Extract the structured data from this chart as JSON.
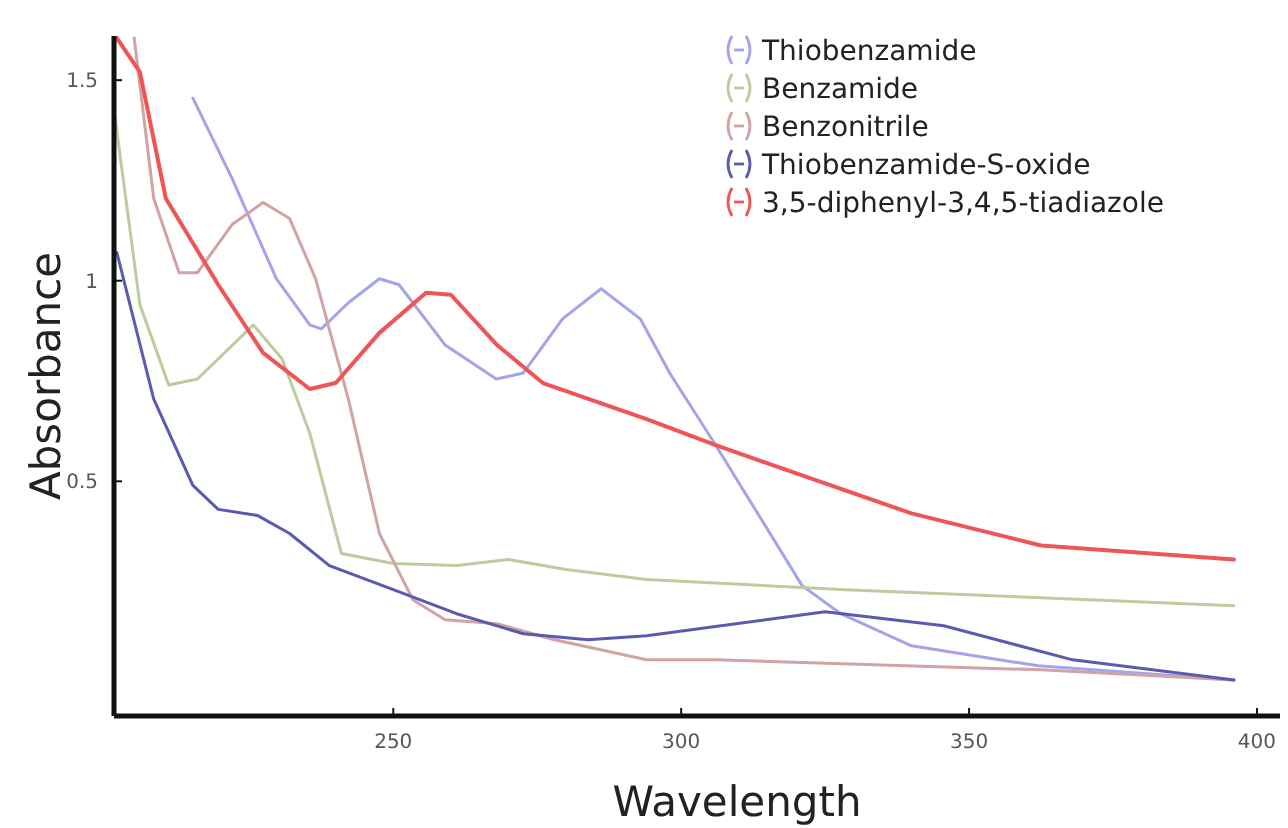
{
  "chart_data": {
    "type": "line",
    "xlabel": "Wavelength",
    "ylabel": "Absorbance",
    "xlim": [
      201.5,
      404
    ],
    "ylim": [
      -0.085,
      1.61
    ],
    "xticks": [
      250,
      300,
      350,
      400
    ],
    "yticks": [
      0.5,
      1,
      1.5
    ],
    "grid": false,
    "legend": "top right",
    "marker": "none",
    "line_style": "solid",
    "series": [
      {
        "name": "Thiobenzamide",
        "color": "#a4a4ea",
        "x": [
          215.2,
          222,
          229.7,
          235.5,
          237.5,
          242.2,
          247.6,
          251,
          259,
          267.9,
          272.6,
          279.4,
          286.1,
          292.9,
          298,
          306,
          321,
          327.7,
          340,
          362,
          396
        ],
        "values": [
          1.455,
          1.255,
          1.005,
          0.89,
          0.88,
          0.945,
          1.005,
          0.99,
          0.84,
          0.755,
          0.77,
          0.905,
          0.98,
          0.905,
          0.77,
          0.59,
          0.24,
          0.17,
          0.09,
          0.04,
          0.005
        ]
      },
      {
        "name": "Benzamide",
        "color": "#bccc9e",
        "x": [
          201.7,
          206,
          211,
          216,
          225.7,
          230.7,
          235.5,
          241,
          250,
          261,
          270,
          280,
          294,
          328.5,
          396
        ],
        "values": [
          1.405,
          0.94,
          0.74,
          0.755,
          0.89,
          0.805,
          0.62,
          0.32,
          0.295,
          0.29,
          0.305,
          0.28,
          0.255,
          0.23,
          0.19
        ]
      },
      {
        "name": "Benzonitrile",
        "color": "#d0a4a4",
        "x": [
          205,
          208.4,
          212.8,
          216,
          222,
          227.4,
          232,
          236.5,
          242.2,
          247.6,
          253.4,
          259,
          268,
          278,
          294,
          306,
          362.5,
          396
        ],
        "values": [
          1.605,
          1.205,
          1.02,
          1.02,
          1.14,
          1.195,
          1.155,
          1.005,
          0.705,
          0.37,
          0.205,
          0.155,
          0.145,
          0.105,
          0.055,
          0.055,
          0.03,
          0.005
        ]
      },
      {
        "name": "Thiobenzamide-S-oxide",
        "color": "#5a5ab0",
        "x": [
          202,
          208.4,
          215.2,
          219.6,
          226.4,
          232,
          238.9,
          250,
          261,
          272.6,
          283.8,
          294,
          325,
          345.6,
          368,
          396
        ],
        "values": [
          1.07,
          0.705,
          0.49,
          0.43,
          0.415,
          0.37,
          0.29,
          0.23,
          0.17,
          0.12,
          0.105,
          0.115,
          0.175,
          0.14,
          0.055,
          0.005
        ]
      },
      {
        "name": "3,5-diphenyl-3,4,5-tiadiazole",
        "color": "#f05555",
        "x": [
          202,
          206,
          210.5,
          219.6,
          227.4,
          235.5,
          240,
          247.6,
          255.7,
          260,
          268,
          276,
          294,
          306,
          323,
          340,
          362.5,
          396
        ],
        "values": [
          1.605,
          1.52,
          1.205,
          0.99,
          0.82,
          0.73,
          0.745,
          0.87,
          0.97,
          0.965,
          0.84,
          0.745,
          0.655,
          0.59,
          0.505,
          0.42,
          0.34,
          0.305
        ]
      }
    ]
  }
}
